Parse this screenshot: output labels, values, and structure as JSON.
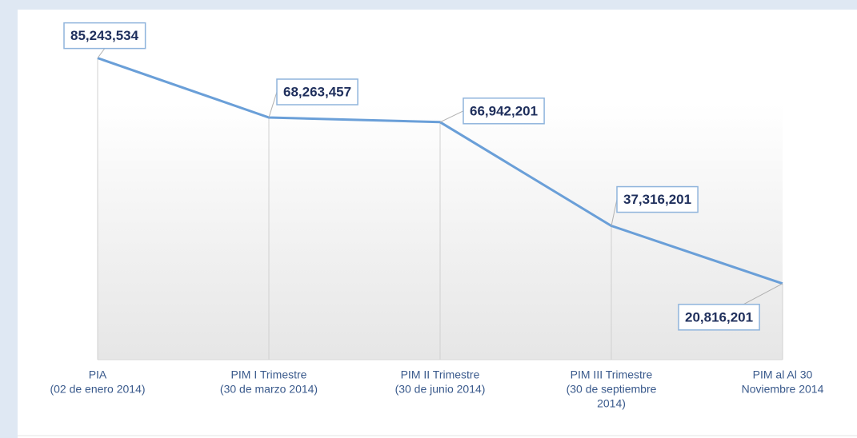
{
  "chart_data": {
    "type": "line",
    "categories": [
      [
        "PIA",
        "(02 de enero 2014)"
      ],
      [
        "PIM I Trimestre",
        "(30 de marzo 2014)"
      ],
      [
        "PIM II Trimestre",
        "(30 de junio 2014)"
      ],
      [
        "PIM III  Trimestre",
        "(30 de septiembre",
        "2014)"
      ],
      [
        "PIM al Al 30",
        "Noviembre 2014"
      ]
    ],
    "values": [
      85243534,
      68263457,
      66942201,
      37316201,
      20816201
    ],
    "value_labels": [
      "85,243,534",
      "68,263,457",
      "66,942,201",
      "37,316,201",
      "20,816,201"
    ],
    "color": "#6a9fd8",
    "ylim": [
      0,
      100000000
    ]
  }
}
